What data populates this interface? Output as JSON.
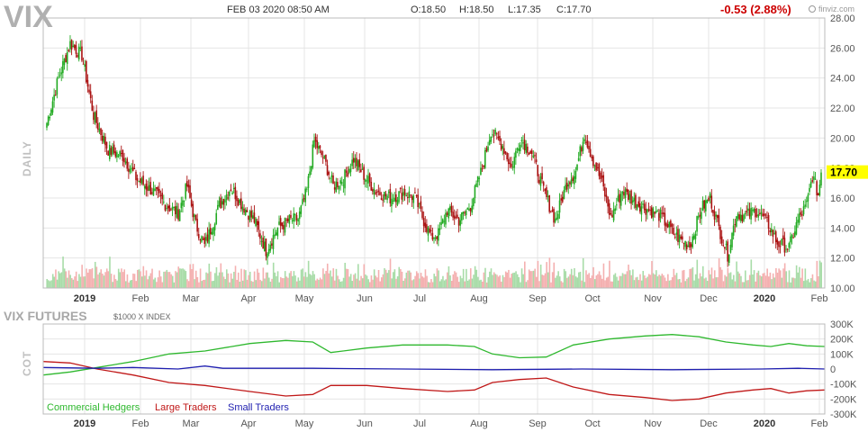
{
  "header": {
    "ticker": "VIX",
    "datetime": "FEB 03 2020 08:50 AM",
    "open": "O:18.50",
    "high": "H:18.50",
    "low": "L:17.35",
    "close": "C:17.70",
    "change": "-0.53 (2.88%)",
    "brand": "finviz.com",
    "timeframe": "DAILY",
    "last_price_label": "17.70"
  },
  "colors": {
    "up": "#22aa22",
    "down": "#aa1111",
    "grid": "#e4e4e4",
    "vol_up": "#a8dca8",
    "vol_down": "#f4b0b0",
    "price_tag": "#ffff00",
    "change": "#cc0000",
    "commercial": "#2eb82e",
    "large": "#c01818",
    "small": "#1f1fb0"
  },
  "chart_data": [
    {
      "type": "candlestick",
      "title": "VIX",
      "ylim": [
        10,
        28
      ],
      "y_ticks": [
        "10.00",
        "12.00",
        "14.00",
        "16.00",
        "18.00",
        "20.00",
        "22.00",
        "24.00",
        "26.00",
        "28.00"
      ],
      "x_labels": [
        "2019",
        "Feb",
        "Mar",
        "Apr",
        "May",
        "Jun",
        "Jul",
        "Aug",
        "Sep",
        "Oct",
        "Nov",
        "Dec",
        "2020",
        "Feb"
      ],
      "last_price": 17.7,
      "close_anchors": [
        {
          "d": 0,
          "v": 21.0
        },
        {
          "d": 8,
          "v": 24.0
        },
        {
          "d": 16,
          "v": 26.3
        },
        {
          "d": 24,
          "v": 25.5
        },
        {
          "d": 32,
          "v": 21.5
        },
        {
          "d": 42,
          "v": 19.2
        },
        {
          "d": 52,
          "v": 18.8
        },
        {
          "d": 62,
          "v": 17.2
        },
        {
          "d": 72,
          "v": 16.5
        },
        {
          "d": 82,
          "v": 15.5
        },
        {
          "d": 90,
          "v": 15.0
        },
        {
          "d": 96,
          "v": 16.8
        },
        {
          "d": 102,
          "v": 14.2
        },
        {
          "d": 108,
          "v": 12.8
        },
        {
          "d": 118,
          "v": 15.5
        },
        {
          "d": 126,
          "v": 16.7
        },
        {
          "d": 134,
          "v": 15.5
        },
        {
          "d": 142,
          "v": 14.5
        },
        {
          "d": 150,
          "v": 12.5
        },
        {
          "d": 158,
          "v": 14.0
        },
        {
          "d": 166,
          "v": 14.5
        },
        {
          "d": 172,
          "v": 14.6
        },
        {
          "d": 178,
          "v": 16.5
        },
        {
          "d": 183,
          "v": 19.8
        },
        {
          "d": 190,
          "v": 18.5
        },
        {
          "d": 196,
          "v": 16.8
        },
        {
          "d": 203,
          "v": 17.3
        },
        {
          "d": 210,
          "v": 18.6
        },
        {
          "d": 217,
          "v": 17.5
        },
        {
          "d": 225,
          "v": 16.5
        },
        {
          "d": 235,
          "v": 16.0
        },
        {
          "d": 245,
          "v": 16.4
        },
        {
          "d": 252,
          "v": 16.0
        },
        {
          "d": 258,
          "v": 14.5
        },
        {
          "d": 263,
          "v": 13.4
        },
        {
          "d": 268,
          "v": 13.6
        },
        {
          "d": 274,
          "v": 15.2
        },
        {
          "d": 282,
          "v": 14.5
        },
        {
          "d": 290,
          "v": 15.5
        },
        {
          "d": 298,
          "v": 18.0
        },
        {
          "d": 304,
          "v": 20.5
        },
        {
          "d": 312,
          "v": 19.5
        },
        {
          "d": 318,
          "v": 18.0
        },
        {
          "d": 324,
          "v": 20.0
        },
        {
          "d": 332,
          "v": 19.0
        },
        {
          "d": 340,
          "v": 16.5
        },
        {
          "d": 348,
          "v": 14.5
        },
        {
          "d": 356,
          "v": 17.0
        },
        {
          "d": 362,
          "v": 17.8
        },
        {
          "d": 368,
          "v": 20.3
        },
        {
          "d": 374,
          "v": 18.5
        },
        {
          "d": 380,
          "v": 17.0
        },
        {
          "d": 386,
          "v": 14.7
        },
        {
          "d": 394,
          "v": 16.5
        },
        {
          "d": 402,
          "v": 15.8
        },
        {
          "d": 410,
          "v": 15.3
        },
        {
          "d": 420,
          "v": 14.8
        },
        {
          "d": 430,
          "v": 13.5
        },
        {
          "d": 440,
          "v": 12.8
        },
        {
          "d": 448,
          "v": 15.3
        },
        {
          "d": 454,
          "v": 16.0
        },
        {
          "d": 460,
          "v": 14.0
        },
        {
          "d": 466,
          "v": 12.2
        },
        {
          "d": 472,
          "v": 15.0
        },
        {
          "d": 478,
          "v": 14.8
        },
        {
          "d": 486,
          "v": 15.2
        },
        {
          "d": 494,
          "v": 14.2
        },
        {
          "d": 500,
          "v": 13.0
        },
        {
          "d": 508,
          "v": 12.7
        },
        {
          "d": 514,
          "v": 14.5
        },
        {
          "d": 520,
          "v": 15.5
        },
        {
          "d": 524,
          "v": 17.5
        },
        {
          "d": 528,
          "v": 16.2
        },
        {
          "d": 530,
          "v": 17.7
        }
      ],
      "volume_note": "relative daily volume bars along bottom of price panel"
    },
    {
      "type": "line",
      "title": "VIX FUTURES",
      "subtitle": "$1000 X INDEX",
      "ylabel": "COT",
      "ylim": [
        -300000,
        300000
      ],
      "y_ticks": [
        "300K",
        "200K",
        "100K",
        "0",
        "-100K",
        "-200K",
        "-300K"
      ],
      "x_labels": [
        "2019",
        "Feb",
        "Mar",
        "Apr",
        "May",
        "Jun",
        "Jul",
        "Aug",
        "Sep",
        "Oct",
        "Nov",
        "Dec",
        "2020",
        "Feb"
      ],
      "series": [
        {
          "name": "Commercial Hedgers",
          "color": "#2eb82e",
          "points": [
            {
              "d": 0,
              "v": -40000
            },
            {
              "d": 30,
              "v": -20000
            },
            {
              "d": 60,
              "v": 10000
            },
            {
              "d": 100,
              "v": 50000
            },
            {
              "d": 140,
              "v": 100000
            },
            {
              "d": 180,
              "v": 120000
            },
            {
              "d": 230,
              "v": 170000
            },
            {
              "d": 270,
              "v": 190000
            },
            {
              "d": 300,
              "v": 180000
            },
            {
              "d": 320,
              "v": 110000
            },
            {
              "d": 360,
              "v": 140000
            },
            {
              "d": 400,
              "v": 160000
            },
            {
              "d": 450,
              "v": 160000
            },
            {
              "d": 480,
              "v": 150000
            },
            {
              "d": 500,
              "v": 100000
            },
            {
              "d": 530,
              "v": 75000
            },
            {
              "d": 560,
              "v": 80000
            },
            {
              "d": 590,
              "v": 160000
            },
            {
              "d": 630,
              "v": 200000
            },
            {
              "d": 670,
              "v": 220000
            },
            {
              "d": 700,
              "v": 230000
            },
            {
              "d": 730,
              "v": 215000
            },
            {
              "d": 760,
              "v": 180000
            },
            {
              "d": 790,
              "v": 160000
            },
            {
              "d": 810,
              "v": 150000
            },
            {
              "d": 830,
              "v": 170000
            },
            {
              "d": 850,
              "v": 155000
            },
            {
              "d": 870,
              "v": 150000
            }
          ]
        },
        {
          "name": "Large Traders",
          "color": "#c01818",
          "points": [
            {
              "d": 0,
              "v": 50000
            },
            {
              "d": 30,
              "v": 40000
            },
            {
              "d": 60,
              "v": 0
            },
            {
              "d": 100,
              "v": -40000
            },
            {
              "d": 140,
              "v": -90000
            },
            {
              "d": 180,
              "v": -110000
            },
            {
              "d": 230,
              "v": -150000
            },
            {
              "d": 270,
              "v": -180000
            },
            {
              "d": 300,
              "v": -170000
            },
            {
              "d": 320,
              "v": -110000
            },
            {
              "d": 360,
              "v": -110000
            },
            {
              "d": 400,
              "v": -130000
            },
            {
              "d": 450,
              "v": -150000
            },
            {
              "d": 480,
              "v": -140000
            },
            {
              "d": 500,
              "v": -90000
            },
            {
              "d": 530,
              "v": -70000
            },
            {
              "d": 560,
              "v": -60000
            },
            {
              "d": 590,
              "v": -120000
            },
            {
              "d": 630,
              "v": -170000
            },
            {
              "d": 670,
              "v": -190000
            },
            {
              "d": 700,
              "v": -210000
            },
            {
              "d": 730,
              "v": -200000
            },
            {
              "d": 760,
              "v": -160000
            },
            {
              "d": 790,
              "v": -140000
            },
            {
              "d": 810,
              "v": -130000
            },
            {
              "d": 830,
              "v": -160000
            },
            {
              "d": 850,
              "v": -145000
            },
            {
              "d": 870,
              "v": -140000
            }
          ]
        },
        {
          "name": "Small Traders",
          "color": "#1f1fb0",
          "points": [
            {
              "d": 0,
              "v": 10000
            },
            {
              "d": 60,
              "v": 5000
            },
            {
              "d": 100,
              "v": 10000
            },
            {
              "d": 150,
              "v": 0
            },
            {
              "d": 180,
              "v": 20000
            },
            {
              "d": 200,
              "v": 5000
            },
            {
              "d": 300,
              "v": 5000
            },
            {
              "d": 400,
              "v": 0
            },
            {
              "d": 500,
              "v": -5000
            },
            {
              "d": 600,
              "v": 0
            },
            {
              "d": 700,
              "v": -5000
            },
            {
              "d": 800,
              "v": 0
            },
            {
              "d": 840,
              "v": 5000
            },
            {
              "d": 870,
              "v": 0
            }
          ]
        }
      ]
    }
  ]
}
